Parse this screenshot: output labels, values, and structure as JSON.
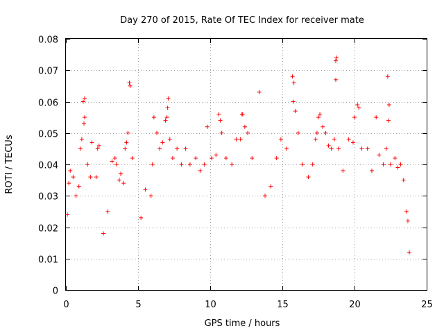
{
  "chart_data": {
    "type": "scatter",
    "title": "Day 270 of 2015, Rate Of TEC Index for receiver mate",
    "xlabel": "GPS time / hours",
    "ylabel": "ROTI / TECUs",
    "xlim": [
      0,
      25
    ],
    "ylim": [
      0,
      0.08
    ],
    "x_ticks": [
      "0",
      "5",
      "10",
      "15",
      "20",
      "25"
    ],
    "y_ticks": [
      "0",
      "0.01",
      "0.02",
      "0.03",
      "0.04",
      "0.05",
      "0.06",
      "0.07",
      "0.08"
    ],
    "grid": true,
    "marker": "plus",
    "color": "#ff0000",
    "series": [
      {
        "points": [
          [
            0.1,
            0.024
          ],
          [
            0.2,
            0.034
          ],
          [
            0.3,
            0.038
          ],
          [
            0.5,
            0.036
          ],
          [
            0.7,
            0.03
          ],
          [
            0.9,
            0.033
          ],
          [
            1.0,
            0.045
          ],
          [
            1.1,
            0.048
          ],
          [
            1.2,
            0.06
          ],
          [
            1.3,
            0.061
          ],
          [
            1.3,
            0.055
          ],
          [
            1.25,
            0.053
          ],
          [
            1.5,
            0.04
          ],
          [
            1.7,
            0.036
          ],
          [
            1.8,
            0.047
          ],
          [
            2.1,
            0.036
          ],
          [
            2.2,
            0.045
          ],
          [
            2.3,
            0.046
          ],
          [
            2.6,
            0.018
          ],
          [
            2.9,
            0.025
          ],
          [
            3.2,
            0.041
          ],
          [
            3.4,
            0.042
          ],
          [
            3.5,
            0.04
          ],
          [
            3.7,
            0.035
          ],
          [
            3.8,
            0.037
          ],
          [
            4.0,
            0.034
          ],
          [
            4.1,
            0.045
          ],
          [
            4.2,
            0.047
          ],
          [
            4.3,
            0.05
          ],
          [
            4.4,
            0.066
          ],
          [
            4.45,
            0.065
          ],
          [
            4.6,
            0.042
          ],
          [
            5.2,
            0.023
          ],
          [
            5.5,
            0.032
          ],
          [
            5.9,
            0.03
          ],
          [
            6.0,
            0.04
          ],
          [
            6.1,
            0.055
          ],
          [
            6.3,
            0.05
          ],
          [
            6.5,
            0.045
          ],
          [
            6.7,
            0.047
          ],
          [
            6.9,
            0.054
          ],
          [
            7.0,
            0.055
          ],
          [
            7.05,
            0.058
          ],
          [
            7.1,
            0.061
          ],
          [
            7.2,
            0.048
          ],
          [
            7.4,
            0.042
          ],
          [
            7.7,
            0.045
          ],
          [
            8.0,
            0.04
          ],
          [
            8.3,
            0.045
          ],
          [
            8.6,
            0.04
          ],
          [
            9.0,
            0.042
          ],
          [
            9.3,
            0.038
          ],
          [
            9.6,
            0.04
          ],
          [
            9.8,
            0.052
          ],
          [
            10.1,
            0.042
          ],
          [
            10.4,
            0.043
          ],
          [
            10.6,
            0.056
          ],
          [
            10.7,
            0.054
          ],
          [
            10.8,
            0.05
          ],
          [
            11.1,
            0.042
          ],
          [
            11.5,
            0.04
          ],
          [
            11.8,
            0.048
          ],
          [
            12.1,
            0.048
          ],
          [
            12.2,
            0.056
          ],
          [
            12.25,
            0.056
          ],
          [
            12.4,
            0.052
          ],
          [
            12.6,
            0.05
          ],
          [
            12.9,
            0.042
          ],
          [
            13.4,
            0.063
          ],
          [
            13.8,
            0.03
          ],
          [
            14.2,
            0.033
          ],
          [
            14.6,
            0.042
          ],
          [
            14.9,
            0.048
          ],
          [
            15.3,
            0.045
          ],
          [
            15.7,
            0.068
          ],
          [
            15.8,
            0.066
          ],
          [
            15.75,
            0.06
          ],
          [
            15.9,
            0.057
          ],
          [
            16.1,
            0.05
          ],
          [
            16.4,
            0.04
          ],
          [
            16.8,
            0.036
          ],
          [
            17.1,
            0.04
          ],
          [
            17.3,
            0.048
          ],
          [
            17.4,
            0.05
          ],
          [
            17.5,
            0.055
          ],
          [
            17.6,
            0.056
          ],
          [
            17.8,
            0.052
          ],
          [
            18.0,
            0.05
          ],
          [
            18.2,
            0.046
          ],
          [
            18.4,
            0.045
          ],
          [
            18.6,
            0.048
          ],
          [
            18.7,
            0.073
          ],
          [
            18.75,
            0.074
          ],
          [
            18.7,
            0.067
          ],
          [
            18.9,
            0.045
          ],
          [
            19.2,
            0.038
          ],
          [
            19.6,
            0.048
          ],
          [
            19.9,
            0.047
          ],
          [
            20.0,
            0.055
          ],
          [
            20.2,
            0.059
          ],
          [
            20.3,
            0.058
          ],
          [
            20.5,
            0.045
          ],
          [
            20.9,
            0.045
          ],
          [
            21.2,
            0.038
          ],
          [
            21.5,
            0.055
          ],
          [
            21.7,
            0.043
          ],
          [
            22.0,
            0.04
          ],
          [
            22.2,
            0.045
          ],
          [
            22.3,
            0.068
          ],
          [
            22.4,
            0.059
          ],
          [
            22.35,
            0.054
          ],
          [
            22.5,
            0.04
          ],
          [
            22.8,
            0.042
          ],
          [
            23.0,
            0.039
          ],
          [
            23.2,
            0.04
          ],
          [
            23.4,
            0.035
          ],
          [
            23.6,
            0.025
          ],
          [
            23.7,
            0.022
          ],
          [
            23.8,
            0.012
          ]
        ]
      }
    ]
  }
}
